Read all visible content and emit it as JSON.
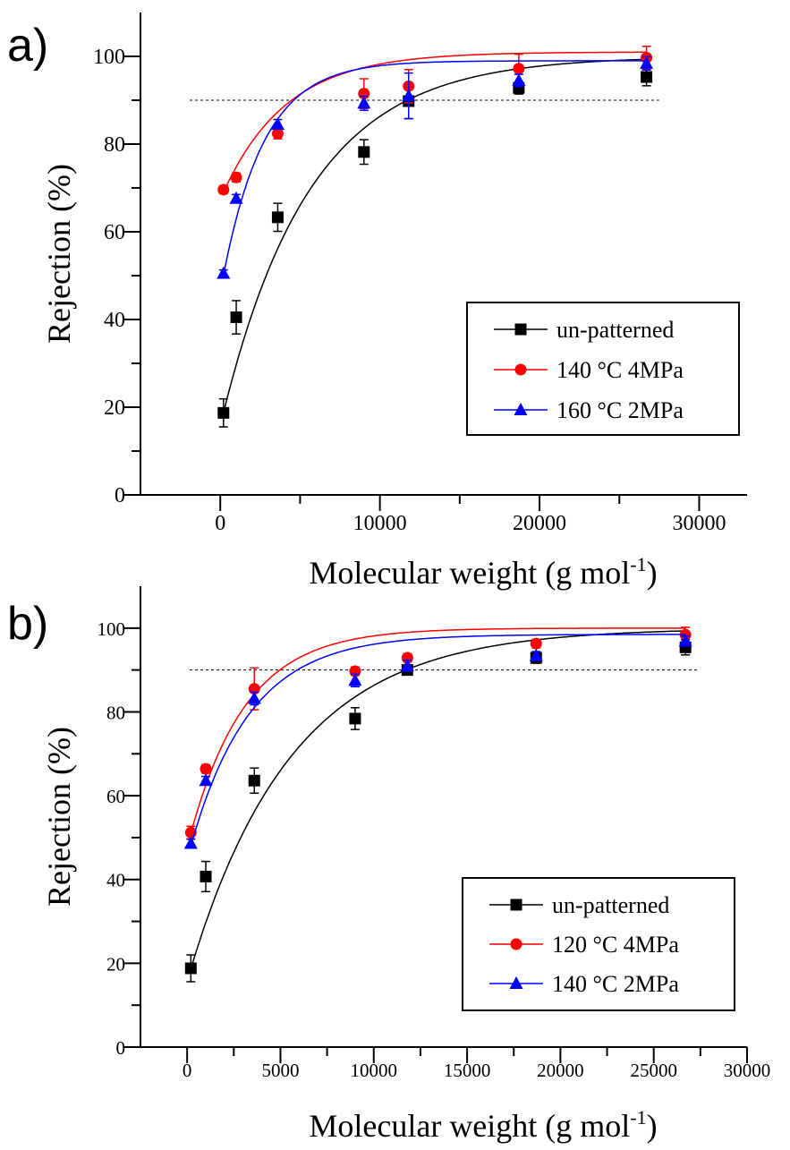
{
  "chart_data": [
    {
      "type": "scatter",
      "panel_label": "a)",
      "xlabel_main": "Molecular weight (g mol",
      "xlabel_sup": "-1",
      "xlabel_end": ")",
      "ylabel": "Rejection (%)",
      "xlim": [
        -5000,
        33000
      ],
      "ylim": [
        0,
        110
      ],
      "xticks": [
        0,
        10000,
        20000,
        30000
      ],
      "xtick_labels": [
        "0",
        "10000",
        "20000",
        "30000"
      ],
      "yticks": [
        0,
        20,
        40,
        60,
        80,
        100
      ],
      "ytick_labels": [
        "0",
        "20",
        "40",
        "60",
        "80",
        "100"
      ],
      "reference_line": 90,
      "legend_position": "lower-right",
      "series": [
        {
          "name": "un-patterned",
          "color": "#000000",
          "marker": "square",
          "x": [
            200,
            1000,
            3600,
            9000,
            11800,
            18700,
            26700
          ],
          "y": [
            18.7,
            40.5,
            63.3,
            78.2,
            89.8,
            92.8,
            95.3
          ],
          "err": [
            3.2,
            3.8,
            3.2,
            2.8,
            4.0,
            1.4,
            2.0
          ],
          "fit": [
            18.7,
            100,
            5500
          ]
        },
        {
          "name": "140 °C 4MPa",
          "color": "#ff0000",
          "marker": "circle",
          "x": [
            200,
            1000,
            3600,
            9000,
            11800,
            18700,
            26700
          ],
          "y": [
            69.6,
            72.4,
            82.4,
            91.5,
            93.2,
            97.2,
            99.7
          ],
          "err": [
            0.9,
            1.0,
            1.2,
            3.4,
            3.8,
            3.3,
            2.6
          ],
          "fit": [
            69.0,
            101,
            4000
          ]
        },
        {
          "name": "160 °C 2MPa",
          "color": "#0000ff",
          "marker": "triangle",
          "x": [
            200,
            1000,
            3600,
            9000,
            11800,
            18700,
            26700
          ],
          "y": [
            50.5,
            67.6,
            84.5,
            89.3,
            91.0,
            94.5,
            98.4
          ],
          "err": [
            0.8,
            0.9,
            1.1,
            1.6,
            5.2,
            1.4,
            1.5
          ],
          "fit": [
            50.0,
            99,
            2600
          ]
        }
      ]
    },
    {
      "type": "scatter",
      "panel_label": "b)",
      "xlabel_main": "Molecular weight (g mol",
      "xlabel_sup": "-1",
      "xlabel_end": ")",
      "ylabel": "Rejection (%)",
      "xlim": [
        -2500,
        30000
      ],
      "ylim": [
        0,
        110
      ],
      "xticks": [
        0,
        5000,
        10000,
        15000,
        20000,
        25000,
        30000
      ],
      "xtick_labels": [
        "0",
        "5000",
        "10000",
        "15000",
        "20000",
        "25000",
        "30000"
      ],
      "yticks": [
        0,
        20,
        40,
        60,
        80,
        100
      ],
      "ytick_labels": [
        "0",
        "20",
        "40",
        "60",
        "80",
        "100"
      ],
      "reference_line": 90,
      "legend_position": "lower-right",
      "series": [
        {
          "name": "un-patterned",
          "color": "#000000",
          "marker": "square",
          "x": [
            200,
            1000,
            3600,
            9000,
            11800,
            18700,
            26700
          ],
          "y": [
            18.8,
            40.7,
            63.6,
            78.4,
            90.0,
            92.9,
            95.4
          ],
          "err": [
            3.2,
            3.6,
            3.0,
            2.6,
            1.0,
            1.3,
            1.8
          ],
          "fit": [
            18.7,
            100,
            5500
          ]
        },
        {
          "name": "120 °C 4MPa",
          "color": "#ff0000",
          "marker": "circle",
          "x": [
            200,
            1000,
            3600,
            9000,
            11800,
            18700,
            26700
          ],
          "y": [
            51.2,
            66.4,
            85.5,
            89.7,
            92.9,
            96.3,
            98.4
          ],
          "err": [
            1.5,
            1.0,
            5.0,
            1.0,
            1.0,
            1.0,
            1.8
          ],
          "fit": [
            51.0,
            100,
            3000
          ]
        },
        {
          "name": "140 °C 2MPa",
          "color": "#0000ff",
          "marker": "triangle",
          "x": [
            200,
            1000,
            3600,
            9000,
            11800,
            18700,
            26700
          ],
          "y": [
            48.6,
            63.6,
            83.2,
            87.5,
            91.0,
            93.4,
            96.9
          ],
          "err": [
            1.0,
            1.0,
            1.5,
            1.5,
            1.3,
            1.0,
            1.2
          ],
          "fit": [
            48.0,
            98.5,
            3200
          ]
        }
      ]
    }
  ]
}
